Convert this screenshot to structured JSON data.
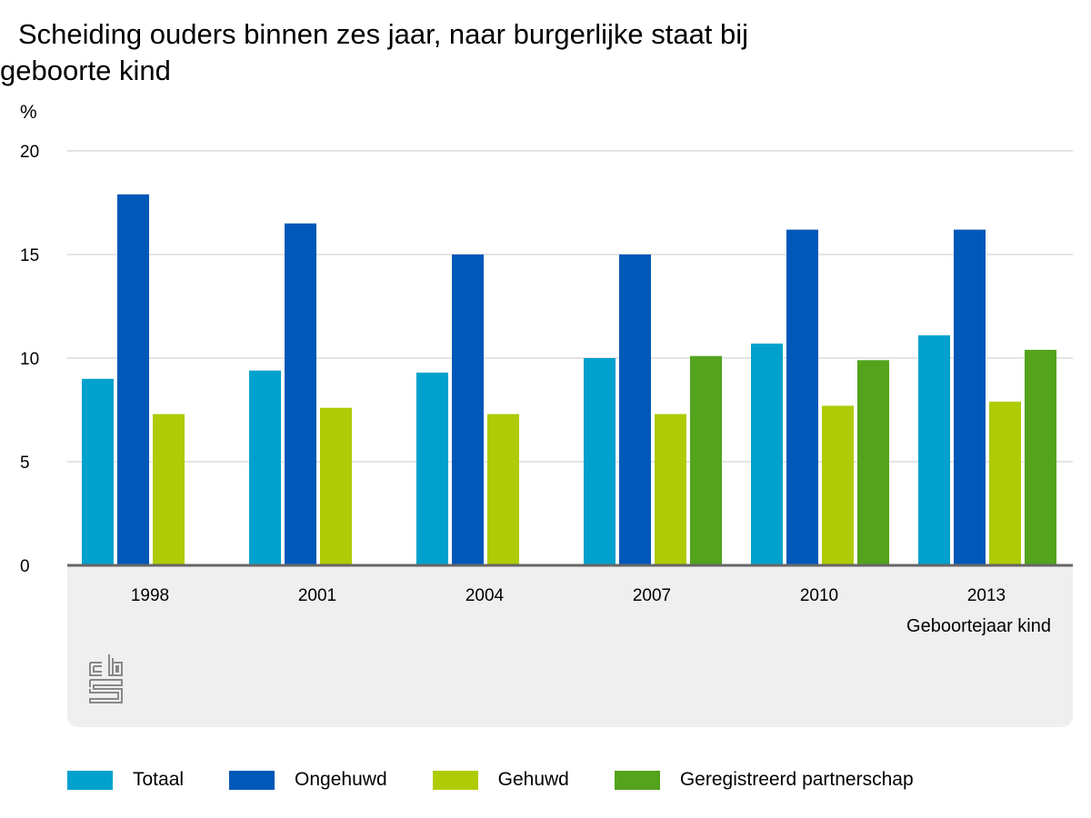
{
  "chart_data": {
    "type": "bar",
    "title": "Scheiding ouders binnen zes jaar, naar burgerlijke staat bij geboorte kind",
    "ylabel": "%",
    "xlabel": "Geboortejaar kind",
    "ylim": [
      0,
      20
    ],
    "yticks": [
      0,
      5,
      10,
      15,
      20
    ],
    "grid": true,
    "legend": "bottom",
    "categories": [
      "1998",
      "2001",
      "2004",
      "2007",
      "2010",
      "2013"
    ],
    "series": [
      {
        "name": "Totaal",
        "color": "#00a1cd",
        "values": [
          9.0,
          9.4,
          9.3,
          10.0,
          10.7,
          11.1
        ]
      },
      {
        "name": "Ongehuwd",
        "color": "#0058b8",
        "values": [
          17.9,
          16.5,
          15.0,
          15.0,
          16.2,
          16.2
        ]
      },
      {
        "name": "Gehuwd",
        "color": "#afcb05",
        "values": [
          7.3,
          7.6,
          7.3,
          7.3,
          7.7,
          7.9
        ]
      },
      {
        "name": "Geregistreerd partnerschap",
        "color": "#53a31d",
        "values": [
          null,
          null,
          null,
          10.1,
          9.9,
          10.4
        ]
      }
    ]
  },
  "logo": "cbs"
}
